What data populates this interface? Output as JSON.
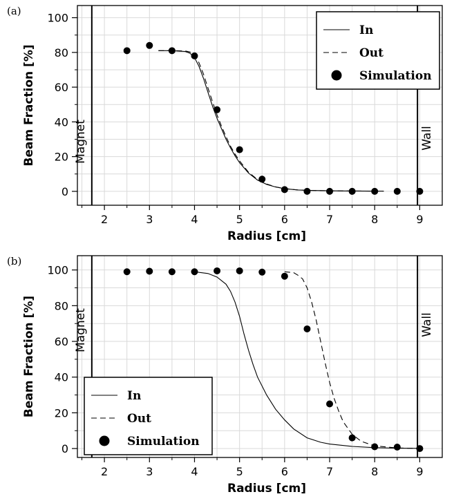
{
  "chart_data": [
    {
      "panel": "(a)",
      "type": "line+scatter",
      "xlabel": "Radius [cm]",
      "ylabel": "Beam Fraction [%]",
      "xlim": [
        1.4,
        9.5
      ],
      "ylim": [
        -8,
        107
      ],
      "xticks": [
        2,
        3,
        4,
        5,
        6,
        7,
        8,
        9
      ],
      "yticks": [
        0,
        20,
        40,
        60,
        80,
        100
      ],
      "grid": true,
      "legend_position": "top-right",
      "vlines": [
        {
          "x": 1.72,
          "label": "Magnet"
        },
        {
          "x": 8.95,
          "label": "Wall"
        }
      ],
      "series": [
        {
          "name": "In",
          "style": "solid",
          "x": [
            3.2,
            3.5,
            3.8,
            3.9,
            4.0,
            4.1,
            4.2,
            4.3,
            4.4,
            4.5,
            4.6,
            4.7,
            4.8,
            4.9,
            5.0,
            5.2,
            5.4,
            5.6,
            5.8,
            6.0,
            6.3,
            6.6,
            7.0,
            7.5,
            8.0,
            8.2
          ],
          "y": [
            81,
            81,
            80.5,
            79.5,
            77,
            72,
            65,
            57,
            49,
            42,
            36,
            30,
            25,
            20.5,
            16.5,
            10.5,
            6.5,
            4,
            2.5,
            1.5,
            0.8,
            0.5,
            0.3,
            0.2,
            0.1,
            0.1
          ]
        },
        {
          "name": "Out",
          "style": "dashed",
          "x": [
            3.2,
            3.5,
            3.8,
            3.9,
            4.0,
            4.1,
            4.2,
            4.3,
            4.4,
            4.5,
            4.6,
            4.7,
            4.8,
            4.9,
            5.0,
            5.2,
            5.4,
            5.6,
            5.8,
            6.0,
            6.3,
            6.6,
            7.0,
            7.5,
            8.0,
            8.2
          ],
          "y": [
            81,
            81,
            80.8,
            80.2,
            78.5,
            74,
            67.5,
            59.5,
            51.5,
            44,
            37.5,
            31.5,
            26,
            21.5,
            17.5,
            11,
            6.8,
            4.2,
            2.6,
            1.6,
            0.8,
            0.5,
            0.3,
            0.2,
            0.1,
            0.1
          ]
        },
        {
          "name": "Simulation",
          "style": "marker",
          "x": [
            2.5,
            3.0,
            3.5,
            4.0,
            4.5,
            5.0,
            5.5,
            6.0,
            6.5,
            7.0,
            7.5,
            8.0,
            8.5,
            9.0
          ],
          "y": [
            81,
            84,
            81,
            78,
            47,
            24,
            7,
            1,
            0,
            0,
            0,
            0,
            0,
            0
          ]
        }
      ]
    },
    {
      "panel": "(b)",
      "type": "line+scatter",
      "xlabel": "Radius [cm]",
      "ylabel": "Beam Fraction [%]",
      "xlim": [
        1.4,
        9.5
      ],
      "ylim": [
        -5,
        108
      ],
      "xticks": [
        2,
        3,
        4,
        5,
        6,
        7,
        8,
        9
      ],
      "yticks": [
        0,
        20,
        40,
        60,
        80,
        100
      ],
      "grid": true,
      "legend_position": "bottom-left",
      "vlines": [
        {
          "x": 1.72,
          "label": "Magnet"
        },
        {
          "x": 8.95,
          "label": "Wall"
        }
      ],
      "series": [
        {
          "name": "In",
          "style": "solid",
          "x": [
            4.0,
            4.3,
            4.5,
            4.7,
            4.8,
            4.9,
            5.0,
            5.1,
            5.2,
            5.3,
            5.4,
            5.6,
            5.8,
            6.0,
            6.2,
            6.5,
            6.8,
            7.0,
            7.5,
            8.0,
            8.5,
            9.0
          ],
          "y": [
            99,
            98,
            96,
            92,
            88,
            82,
            74,
            64,
            55,
            47,
            40,
            30,
            22,
            16,
            11,
            6,
            3.5,
            2.5,
            1.2,
            0.5,
            0.2,
            0.1
          ]
        },
        {
          "name": "Out",
          "style": "dashed",
          "x": [
            6.0,
            6.2,
            6.3,
            6.4,
            6.5,
            6.6,
            6.7,
            6.8,
            6.9,
            7.0,
            7.1,
            7.2,
            7.3,
            7.5,
            7.7,
            8.0,
            8.5,
            9.0
          ],
          "y": [
            99,
            98.5,
            97,
            95,
            90,
            82,
            72,
            60,
            48,
            37,
            28,
            21,
            15,
            8,
            4,
            1.5,
            0.3,
            0.1
          ]
        },
        {
          "name": "Simulation",
          "style": "marker",
          "x": [
            2.5,
            3.0,
            3.5,
            4.0,
            4.5,
            5.0,
            5.5,
            6.0,
            6.5,
            7.0,
            7.5,
            8.0,
            8.5,
            9.0
          ],
          "y": [
            99,
            99.3,
            99,
            99,
            99.5,
            99.5,
            98.8,
            96.5,
            67,
            25,
            6,
            1,
            0.8,
            0
          ]
        }
      ]
    }
  ]
}
